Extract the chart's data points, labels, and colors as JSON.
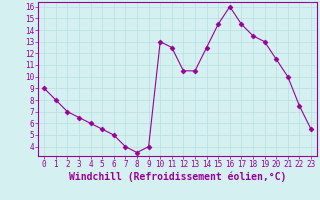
{
  "x": [
    0,
    1,
    2,
    3,
    4,
    5,
    6,
    7,
    8,
    9,
    10,
    11,
    12,
    13,
    14,
    15,
    16,
    17,
    18,
    19,
    20,
    21,
    22,
    23
  ],
  "y": [
    9,
    8,
    7,
    6.5,
    6,
    5.5,
    5,
    4,
    3.5,
    4,
    13,
    12.5,
    10.5,
    10.5,
    12.5,
    14.5,
    16,
    14.5,
    13.5,
    13,
    11.5,
    10,
    7.5,
    5.5
  ],
  "line_color": "#990099",
  "marker": "D",
  "marker_size": 2.5,
  "bg_color": "#d5f0f0",
  "grid_color": "#b8dede",
  "axis_color": "#990099",
  "xlabel": "Windchill (Refroidissement éolien,°C)",
  "xlim": [
    -0.5,
    23.5
  ],
  "ylim": [
    3.2,
    16.4
  ],
  "yticks": [
    4,
    5,
    6,
    7,
    8,
    9,
    10,
    11,
    12,
    13,
    14,
    15,
    16
  ],
  "xticks": [
    0,
    1,
    2,
    3,
    4,
    5,
    6,
    7,
    8,
    9,
    10,
    11,
    12,
    13,
    14,
    15,
    16,
    17,
    18,
    19,
    20,
    21,
    22,
    23
  ],
  "tick_fontsize": 5.5,
  "xlabel_fontsize": 7.0
}
